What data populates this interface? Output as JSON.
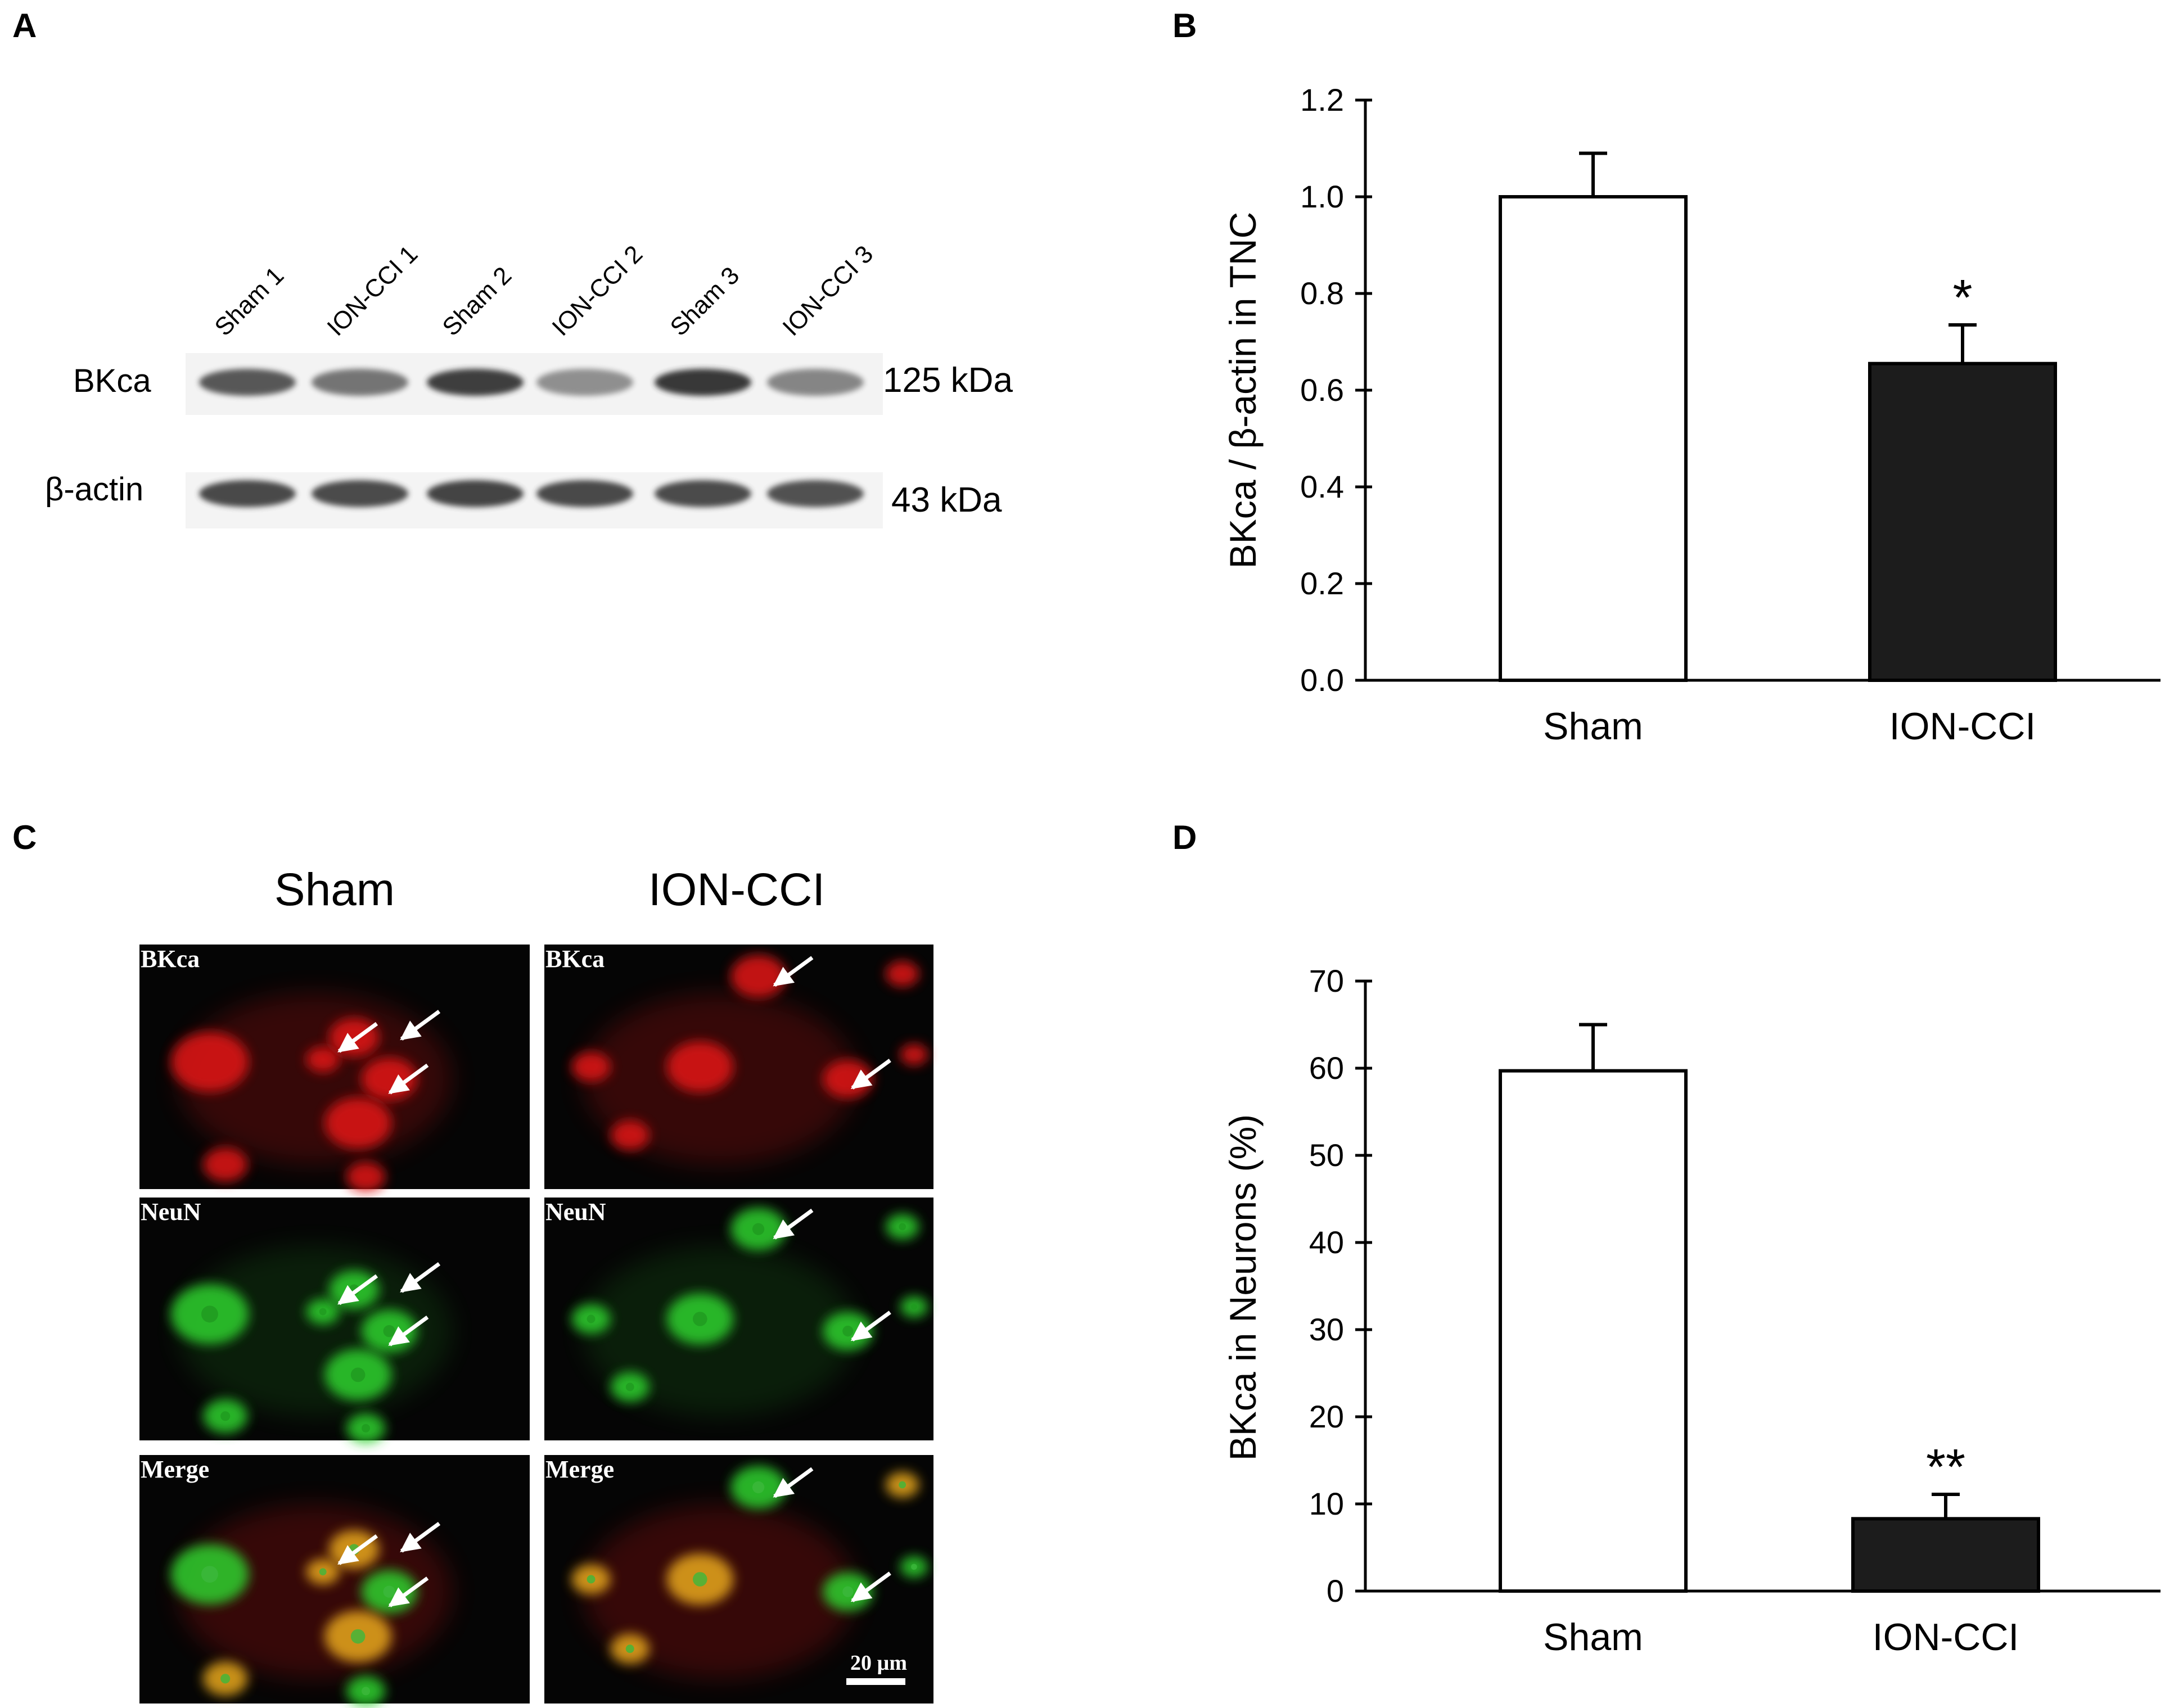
{
  "panels": {
    "a": "A",
    "b": "B",
    "c": "C",
    "d": "D"
  },
  "western_blot": {
    "lanes": [
      "Sham 1",
      "ION-CCI 1",
      "Sham 2",
      "ION-CCI 2",
      "Sham 3",
      "ION-CCI 3"
    ],
    "rows": [
      {
        "label": "BKca",
        "size": "125 kDa",
        "intensity": [
          0.72,
          0.58,
          0.85,
          0.45,
          0.88,
          0.5
        ]
      },
      {
        "label": "β-actin",
        "size": "43 kDa",
        "intensity": [
          0.8,
          0.78,
          0.82,
          0.8,
          0.78,
          0.76
        ]
      }
    ]
  },
  "micrographs": {
    "col_titles": [
      "Sham",
      "ION-CCI"
    ],
    "row_labels": [
      "BKca",
      "NeuN",
      "Merge"
    ],
    "scale_bar": "20 µm",
    "colors": {
      "bkca": "#e21414",
      "neun": "#2ed12e",
      "merge": "#e8a81c",
      "background": "#050505"
    }
  },
  "chart_data": [
    {
      "panel": "B",
      "type": "bar",
      "categories": [
        "Sham",
        "ION-CCI"
      ],
      "values": [
        1.0,
        0.655
      ],
      "errors": [
        0.09,
        0.08
      ],
      "bar_colors": [
        "#ffffff",
        "#1c1c1c"
      ],
      "significance": [
        "",
        "*"
      ],
      "ylabel": "BKca / β-actin in TNC",
      "ylim": [
        0,
        1.2
      ],
      "yticks": [
        "0.0",
        "0.2",
        "0.4",
        "0.6",
        "0.8",
        "1.0",
        "1.2"
      ],
      "grid": false
    },
    {
      "panel": "D",
      "type": "bar",
      "categories": [
        "Sham",
        "ION-CCI"
      ],
      "values": [
        59.7,
        8.3
      ],
      "errors": [
        5.3,
        2.8
      ],
      "bar_colors": [
        "#ffffff",
        "#1c1c1c"
      ],
      "significance": [
        "",
        "**"
      ],
      "ylabel": "BKca in Neurons (%)",
      "ylim": [
        0,
        70
      ],
      "yticks": [
        "0",
        "10",
        "20",
        "30",
        "40",
        "50",
        "60",
        "70"
      ],
      "grid": false
    }
  ]
}
